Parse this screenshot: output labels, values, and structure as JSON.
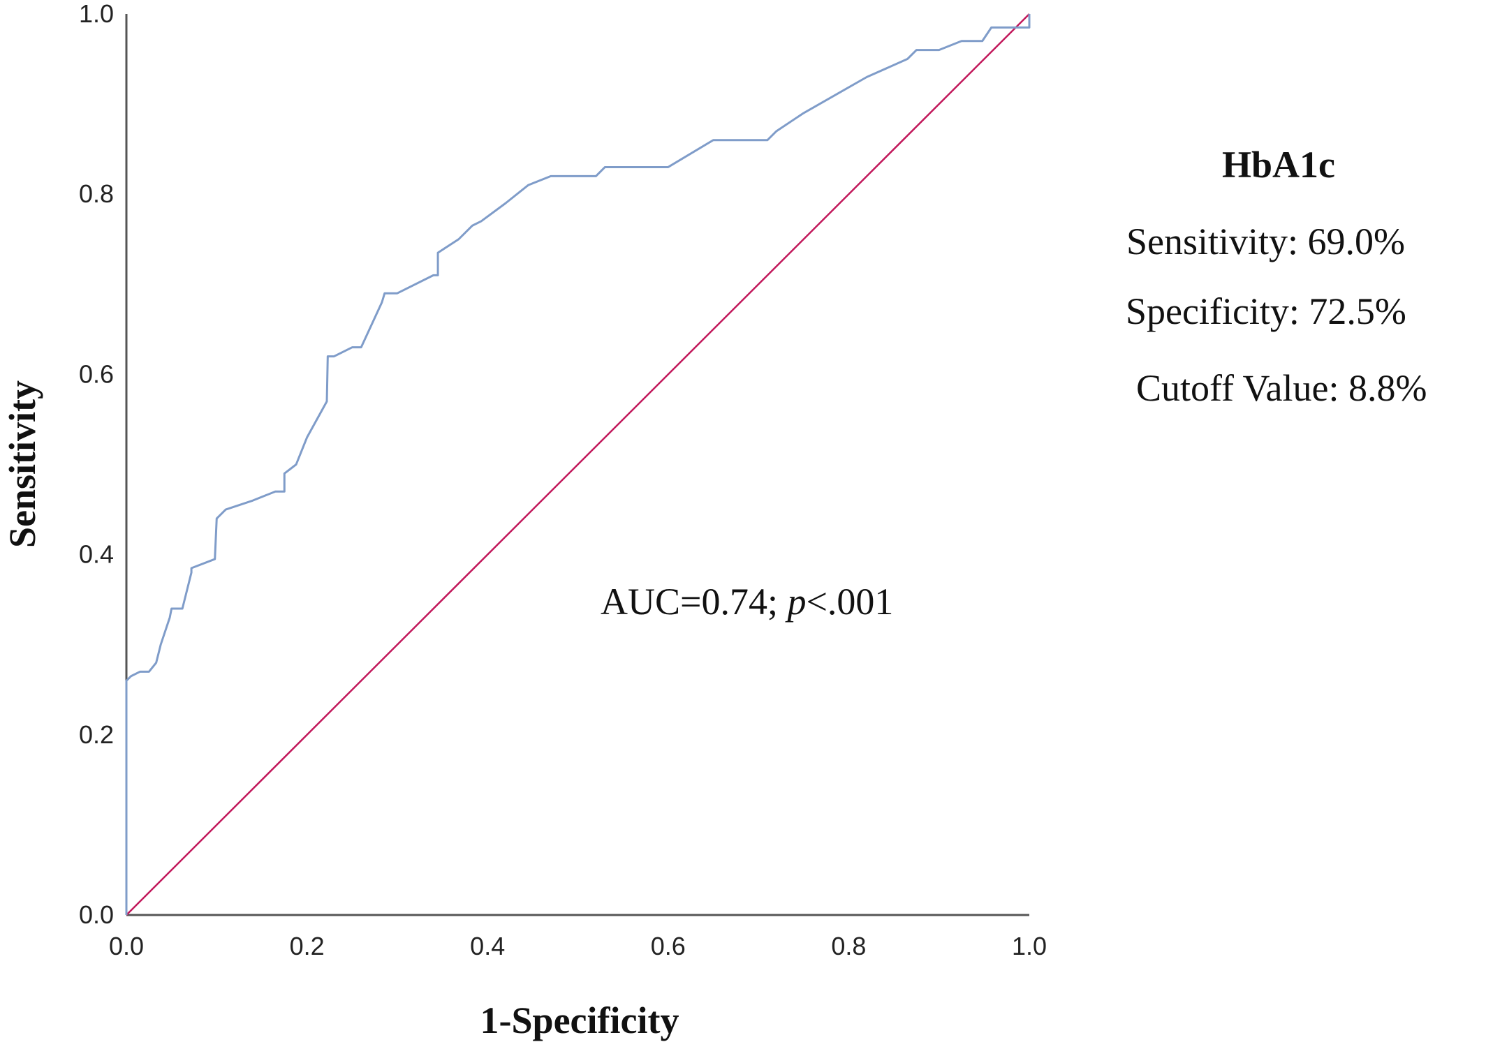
{
  "chart_data": {
    "type": "line",
    "title": "",
    "xlabel": "1-Specificity",
    "ylabel": "Sensitivity",
    "xlim": [
      0,
      1
    ],
    "ylim": [
      0,
      1
    ],
    "x_ticks": [
      "0.0",
      "0.2",
      "0.4",
      "0.6",
      "0.8",
      "1.0"
    ],
    "y_ticks": [
      "0.0",
      "0.2",
      "0.4",
      "0.6",
      "0.8",
      "1.0"
    ],
    "grid": false,
    "series": [
      {
        "color": "#7f9cc9",
        "x": [
          0.0,
          0.0,
          0.005,
          0.015,
          0.025,
          0.033,
          0.038,
          0.048,
          0.05,
          0.062,
          0.072,
          0.072,
          0.098,
          0.1,
          0.11,
          0.14,
          0.165,
          0.175,
          0.175,
          0.188,
          0.2,
          0.222,
          0.223,
          0.23,
          0.25,
          0.26,
          0.283,
          0.286,
          0.3,
          0.34,
          0.345,
          0.345,
          0.368,
          0.383,
          0.393,
          0.42,
          0.445,
          0.47,
          0.52,
          0.53,
          0.6,
          0.65,
          0.71,
          0.72,
          0.75,
          0.82,
          0.865,
          0.875,
          0.9,
          0.925,
          0.948,
          0.958,
          1.0,
          1.0
        ],
        "y": [
          0.0,
          0.26,
          0.265,
          0.27,
          0.27,
          0.28,
          0.3,
          0.33,
          0.34,
          0.34,
          0.38,
          0.385,
          0.395,
          0.44,
          0.45,
          0.46,
          0.47,
          0.47,
          0.49,
          0.5,
          0.53,
          0.57,
          0.62,
          0.62,
          0.63,
          0.63,
          0.68,
          0.69,
          0.69,
          0.71,
          0.71,
          0.735,
          0.75,
          0.765,
          0.77,
          0.79,
          0.81,
          0.82,
          0.82,
          0.83,
          0.83,
          0.86,
          0.86,
          0.87,
          0.89,
          0.93,
          0.95,
          0.96,
          0.96,
          0.97,
          0.97,
          0.985,
          0.985,
          1.0
        ]
      },
      {
        "color": "#c2185b",
        "x": [
          0,
          1
        ],
        "y": [
          0,
          1
        ]
      }
    ],
    "annotation": {
      "prefix": "AUC=0.74; ",
      "p": "p",
      "suffix": "<.001"
    }
  },
  "side_panel": {
    "title": "HbA1c",
    "sensitivity": "Sensitivity: 69.0%",
    "specificity": "Specificity: 72.5%",
    "cutoff": "Cutoff Value: 8.8%"
  }
}
